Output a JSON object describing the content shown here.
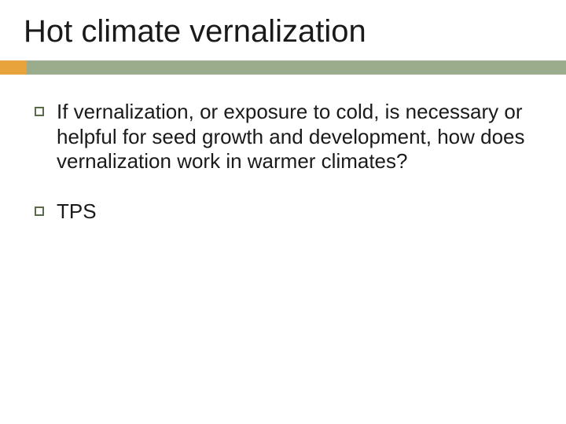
{
  "slide": {
    "title": "Hot climate vernalization",
    "bullets": [
      {
        "text": "If vernalization, or exposure to cold, is necessary or helpful for seed growth and development, how does vernalization work in warmer climates?"
      },
      {
        "text": "TPS"
      }
    ]
  },
  "style": {
    "background_color": "#ffffff",
    "title_fontsize": 40,
    "title_color": "#1a1a1a",
    "body_fontsize": 26,
    "body_color": "#1a1a1a",
    "accent_orange": "#e8a33d",
    "accent_green": "#9aac8c",
    "bullet_border_color": "#5a6b4a",
    "accent_bar_height": 18,
    "accent_orange_width": 34
  }
}
